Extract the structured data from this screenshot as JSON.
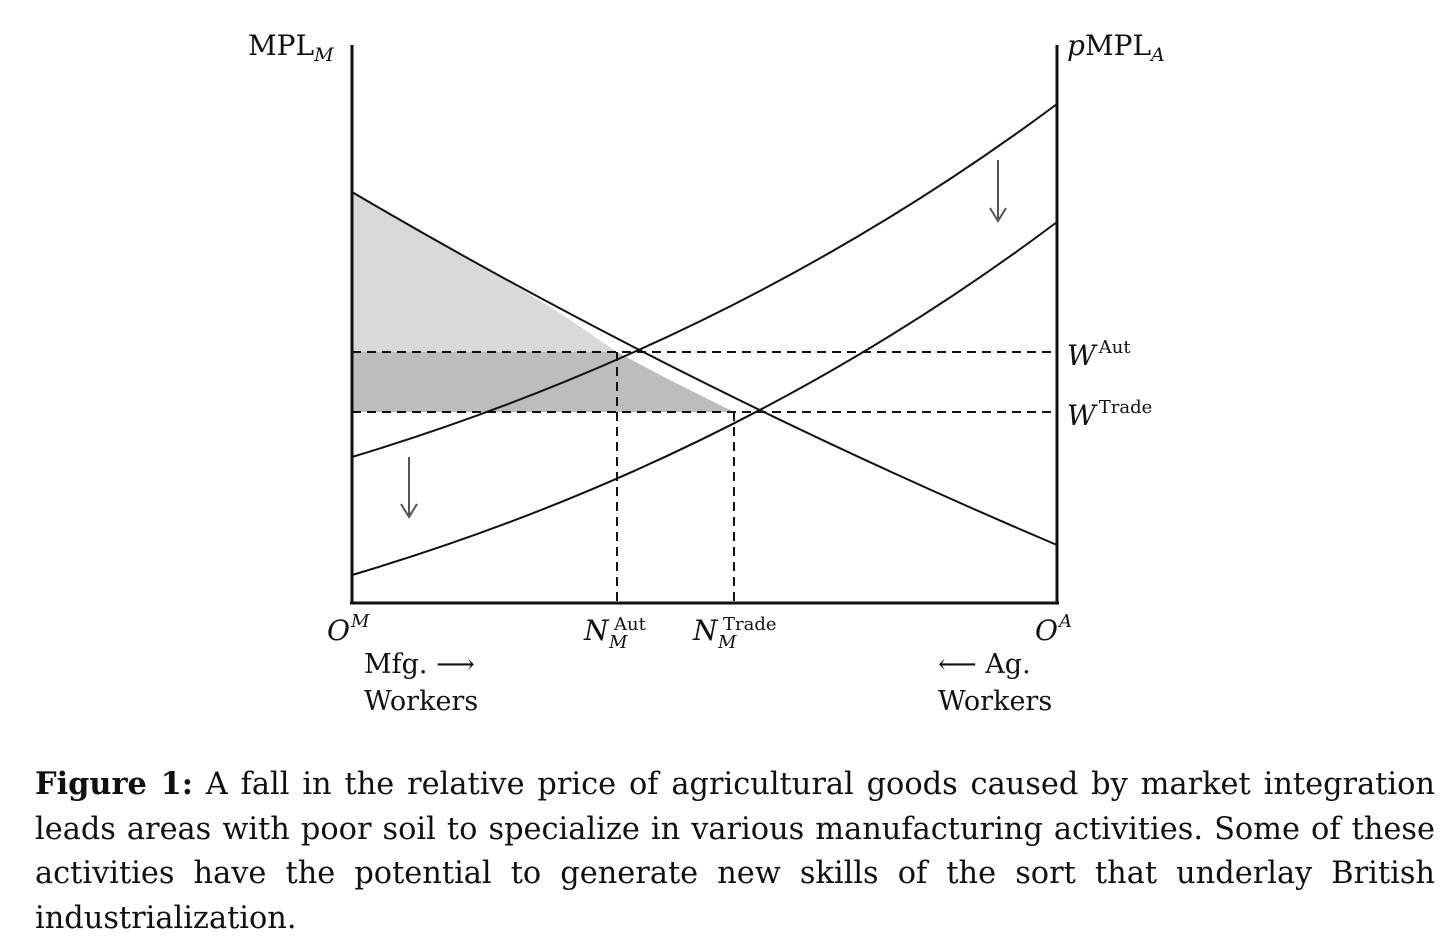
{
  "axes": {
    "left_label_main": "MPL",
    "left_label_sub": "M",
    "right_label_prefix": "p",
    "right_label_main": "MPL",
    "right_label_sub": "A",
    "origin_left_main": "O",
    "origin_left_sup": "M",
    "origin_right_main": "O",
    "origin_right_sup": "A"
  },
  "wages": {
    "aut_main": "W",
    "aut_sup": "Aut",
    "trade_main": "W",
    "trade_sup": "Trade"
  },
  "employment": {
    "aut_main": "N",
    "aut_sup": "Aut",
    "aut_sub": "M",
    "trade_main": "N",
    "trade_sup": "Trade",
    "trade_sub": "M"
  },
  "direction_labels": {
    "mfg_line1": "Mfg. ⟶",
    "mfg_line2": "Workers",
    "ag_line1": "⟵ Ag.",
    "ag_line2": "Workers"
  },
  "caption": {
    "label": "Figure 1:",
    "text": "A fall in the relative price of agricultural goods caused by market integration leads areas with poor soil to specialize in various manufacturing activities. Some of these activities have the potential to generate new skills of the sort that underlay British industrialization."
  },
  "colors": {
    "light_shade": "#d9d9d9",
    "dark_shade": "#bdbdbd",
    "line": "#111111",
    "arrow": "#555555"
  }
}
